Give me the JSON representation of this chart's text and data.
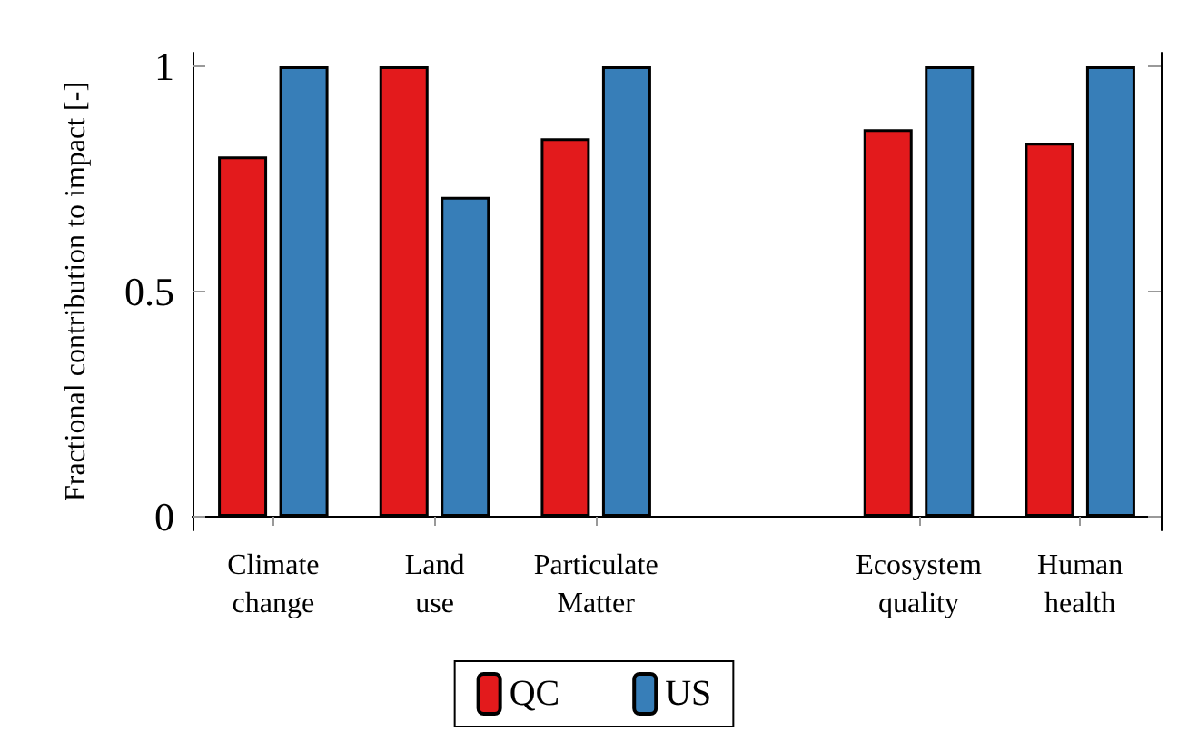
{
  "chart_data": {
    "type": "bar",
    "ylabel": "Fractional contribution to impact [-]",
    "categories": [
      "Climate\nchange",
      "Land\nuse",
      "Particulate\nMatter",
      null,
      "Ecosystem\nquality",
      "Human\nhealth"
    ],
    "series": [
      {
        "name": "QC",
        "color": "#e31a1c",
        "values": [
          0.8,
          1,
          0.84,
          null,
          0.86,
          0.83
        ]
      },
      {
        "name": "US",
        "color": "#377eb8",
        "values": [
          1,
          0.71,
          1,
          null,
          1,
          1
        ]
      }
    ],
    "ylim": [
      -0.03,
      1.03
    ],
    "yticks": [
      0,
      0.5,
      1
    ],
    "grid": false,
    "legend": "bottom"
  }
}
